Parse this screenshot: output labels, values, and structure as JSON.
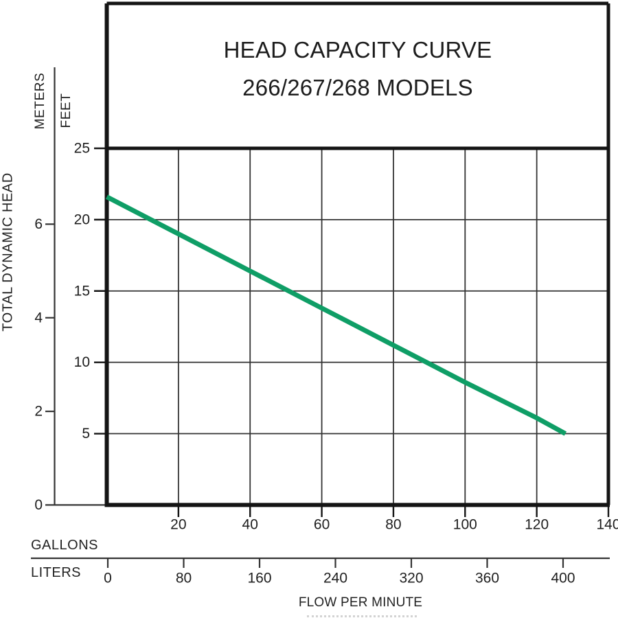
{
  "colors": {
    "curve_green": "#0f9e66",
    "ink": "#1e1e1e",
    "frame": "#141414",
    "grid": "#333333"
  },
  "chart_data": {
    "type": "line",
    "title": "HEAD CAPACITY CURVE",
    "subtitle": "266/267/268 MODELS",
    "grid": true,
    "y_axis": {
      "label_rotated": "TOTAL DYNAMIC HEAD",
      "scales": [
        {
          "name": "METERS",
          "ticks": [
            6,
            4,
            2,
            0
          ],
          "range": [
            0,
            7.6
          ]
        },
        {
          "name": "FEET",
          "ticks": [
            25,
            20,
            15,
            10,
            5
          ],
          "range": [
            0,
            25
          ]
        }
      ]
    },
    "x_axis": {
      "label": "FLOW PER MINUTE",
      "scales": [
        {
          "name": "GALLONS",
          "ticks": [
            20,
            40,
            60,
            80,
            100,
            120,
            140
          ],
          "range": [
            0,
            140
          ]
        },
        {
          "name": "LITERS",
          "ticks": [
            0,
            80,
            160,
            240,
            320,
            360,
            400
          ]
        }
      ]
    },
    "series": [
      {
        "name": "266/267/268 models",
        "x_gallons": [
          0,
          20,
          40,
          60,
          80,
          100,
          120,
          128
        ],
        "y_feet": [
          21.6,
          19.0,
          16.4,
          13.8,
          11.2,
          8.6,
          6.1,
          5.0
        ]
      }
    ]
  }
}
